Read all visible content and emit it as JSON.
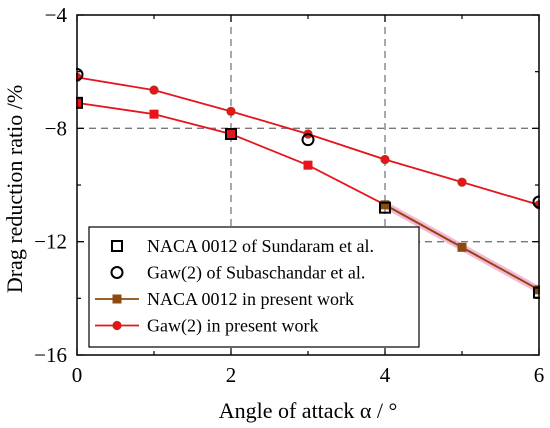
{
  "chart_data": {
    "type": "line",
    "xlabel": "Angle of attack α / °",
    "ylabel": "Drag reduction ratio /%",
    "xlim": [
      0,
      6
    ],
    "ylim": [
      -16,
      -4
    ],
    "xticks": [
      0,
      2,
      4,
      6
    ],
    "yticks": [
      -16,
      -12,
      -8,
      -4
    ],
    "grid": "dashed reference lines at x = 2, x = 4, y = -8 and y = -12",
    "legend_position": "bottom-left",
    "colors": {
      "present_series": "#e8141c",
      "present_series_edge": "#8b4a10",
      "naca_present_marker": "#8b4a10",
      "naca_present_highlight": "#f2a6cc",
      "reference_markers": "#000000",
      "grid": "#7a7a7a"
    },
    "series": [
      {
        "name": "NACA 0012 of Sundaram et al.",
        "style": "open-square",
        "x": [
          0,
          2,
          4,
          6
        ],
        "y": [
          -7.1,
          -8.2,
          -10.8,
          -13.8
        ]
      },
      {
        "name": "Gaw(2) of Subaschandar et al.",
        "style": "open-circle",
        "x": [
          0,
          3,
          6
        ],
        "y": [
          -6.1,
          -8.4,
          -10.6
        ]
      },
      {
        "name": "NACA 0012 in present work",
        "style": "line-square",
        "x": [
          0,
          1,
          2,
          3,
          4,
          5,
          6
        ],
        "y": [
          -7.1,
          -7.5,
          -8.2,
          -9.3,
          -10.7,
          -12.2,
          -13.7
        ]
      },
      {
        "name": "Gaw(2) in present work",
        "style": "line-circle",
        "x": [
          0,
          1,
          2,
          3,
          4,
          5,
          6
        ],
        "y": [
          -6.2,
          -6.65,
          -7.4,
          -8.2,
          -9.1,
          -9.9,
          -10.7
        ]
      }
    ]
  }
}
